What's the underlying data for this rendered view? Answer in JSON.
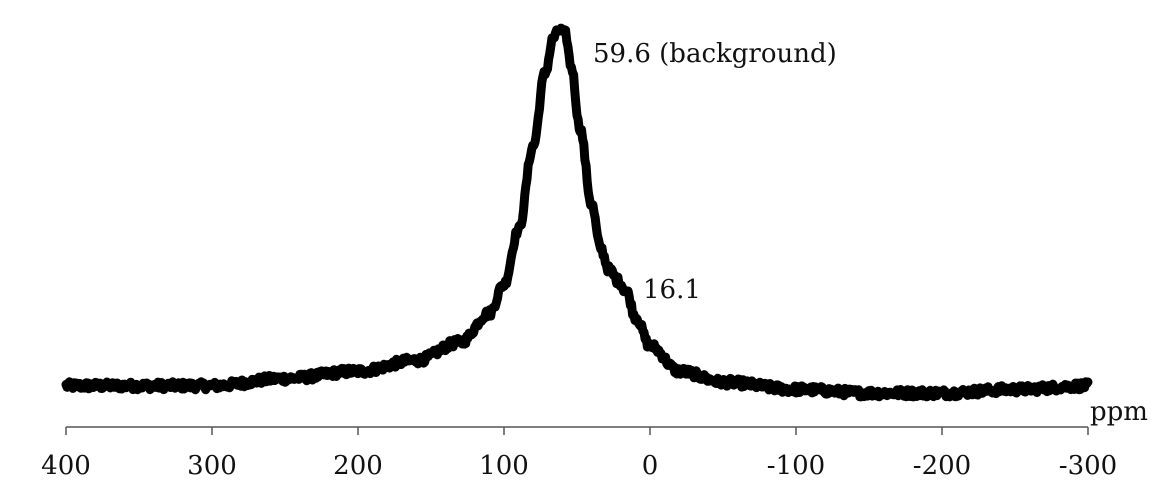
{
  "chart_data": {
    "type": "line",
    "title": "",
    "xlabel": "ppm",
    "ylabel": "",
    "x_reversed": true,
    "xlim": [
      400,
      -300
    ],
    "ylim": [
      0,
      1
    ],
    "grid": false,
    "legend": "none",
    "x_ticks": [
      400,
      300,
      200,
      100,
      0,
      -100,
      -200,
      -300
    ],
    "x_tick_labels": [
      "400",
      "300",
      "200",
      "100",
      "0",
      "-100",
      "-200",
      "-300"
    ],
    "colors": {
      "line": "#000000",
      "axis": "#555555",
      "text": "#111111"
    },
    "series": [
      {
        "points": [
          [
            400,
            0.02
          ],
          [
            350,
            0.02
          ],
          [
            300,
            0.02
          ],
          [
            250,
            0.04
          ],
          [
            200,
            0.06
          ],
          [
            160,
            0.09
          ],
          [
            130,
            0.14
          ],
          [
            110,
            0.22
          ],
          [
            100,
            0.3
          ],
          [
            90,
            0.45
          ],
          [
            80,
            0.68
          ],
          [
            72,
            0.88
          ],
          [
            66,
            0.98
          ],
          [
            62,
            1.0
          ],
          [
            58,
            0.99
          ],
          [
            54,
            0.9
          ],
          [
            48,
            0.73
          ],
          [
            40,
            0.52
          ],
          [
            34,
            0.4
          ],
          [
            28,
            0.34
          ],
          [
            22,
            0.31
          ],
          [
            16.1,
            0.28
          ],
          [
            10,
            0.21
          ],
          [
            0,
            0.13
          ],
          [
            -20,
            0.06
          ],
          [
            -50,
            0.03
          ],
          [
            -100,
            0.01
          ],
          [
            -150,
            0.0
          ],
          [
            -200,
            0.0
          ],
          [
            -250,
            0.01
          ],
          [
            -300,
            0.02
          ]
        ]
      }
    ],
    "annotations": [
      {
        "text": "59.6 (background)",
        "x": 59.6
      },
      {
        "text": "16.1",
        "x": 16.1
      }
    ]
  }
}
